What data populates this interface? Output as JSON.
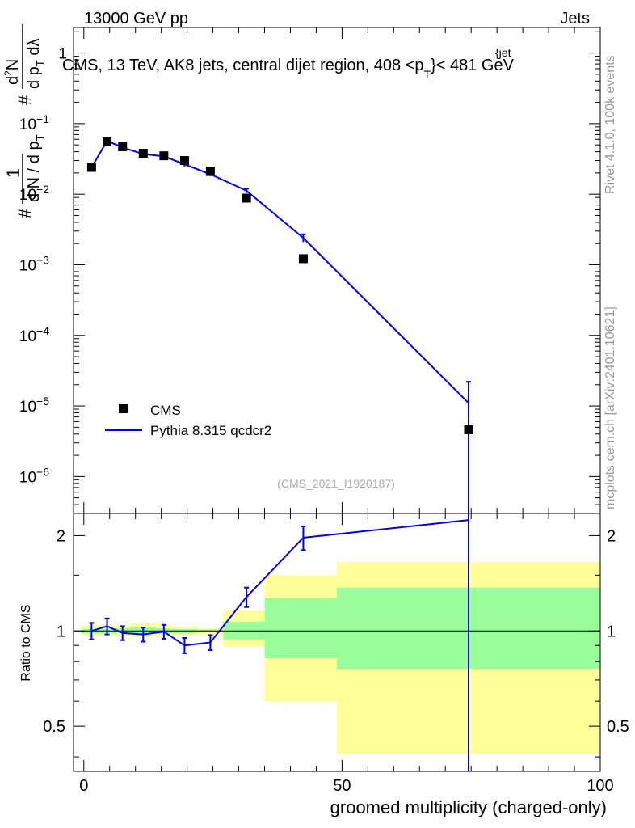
{
  "header": {
    "left": "13000 GeV pp",
    "right": "Jets"
  },
  "side_labels": {
    "upper": "Rivet 4.1.0,  100k events",
    "lower": "mcplots.cern.ch [arXiv:2401.10621]"
  },
  "watermark": "(CMS_2021_I1920187)",
  "colors": {
    "mc": "#0000ee",
    "band_inner": "#99ff99",
    "band_outer": "#ffff99",
    "data": "#000000"
  },
  "chart_data": [
    {
      "type": "scatter",
      "panel": "main",
      "title": "CMS, 13 TeV, AK8 jets, central dijet region, 408 <p",
      "title_sup": "{jet",
      "title_sub": "T",
      "title_tail": "}< 481 GeV",
      "ylabel": {
        "hash": "#",
        "one": "1",
        "dN": "d N / d p",
        "dN_sub": "T",
        "num": "d",
        "num_sup": "2",
        "num_tail": "N",
        "den": "d p",
        "den_sub": "T",
        "den_tail": " dλ",
        "hash2": "#"
      },
      "yscale": "log",
      "xlim": [
        -2,
        100
      ],
      "ylim": [
        3e-07,
        2.3
      ],
      "yticks": [
        {
          "base": "10",
          "exp": "−6",
          "value": 1e-06
        },
        {
          "base": "10",
          "exp": "−5",
          "value": 1e-05
        },
        {
          "base": "10",
          "exp": "−4",
          "value": 0.0001
        },
        {
          "base": "10",
          "exp": "−3",
          "value": 0.001
        },
        {
          "base": "10",
          "exp": "−2",
          "value": 0.01
        },
        {
          "base": "10",
          "exp": "−1",
          "value": 0.1
        },
        {
          "base": "1",
          "exp": "",
          "value": 1
        }
      ],
      "legend": {
        "position": "lower-left",
        "entries": [
          {
            "name": "CMS",
            "style": "marker"
          },
          {
            "name": "Pythia 8.315 qcdcr2",
            "style": "line"
          }
        ]
      },
      "series": [
        {
          "name": "CMS",
          "x": [
            1.5,
            4.5,
            7.5,
            11.5,
            15.5,
            19.5,
            24.5,
            31.5,
            42.5,
            74.5
          ],
          "y": [
            0.024,
            0.055,
            0.047,
            0.038,
            0.035,
            0.03,
            0.021,
            0.0088,
            0.00122,
            4.6e-06
          ]
        },
        {
          "name": "Pythia 8.315 qcdcr2",
          "x": [
            1.5,
            4.5,
            7.5,
            11.5,
            15.5,
            19.5,
            24.5,
            31.5,
            42.5,
            74.5
          ],
          "y": [
            0.024,
            0.057,
            0.046,
            0.037,
            0.0345,
            0.0265,
            0.0192,
            0.0112,
            0.0024,
            1.1e-05
          ],
          "yerr": [
            0.0016,
            0.0025,
            0.002,
            0.0018,
            0.0015,
            0.0018,
            0.0012,
            0.0008,
            0.0003,
            1.1e-05
          ]
        }
      ]
    },
    {
      "type": "line",
      "panel": "ratio",
      "ylabel": "Ratio to CMS",
      "xlabel": "groomed multiplicity (charged-only)",
      "xlim": [
        -2,
        100
      ],
      "ylim": [
        0.36,
        2.35
      ],
      "xticks": [
        {
          "label": "0",
          "value": 0
        },
        {
          "label": "50",
          "value": 50
        },
        {
          "label": "100",
          "value": 100
        }
      ],
      "yticks": [
        {
          "label": "0.5",
          "value": 0.5
        },
        {
          "label": "1",
          "value": 1
        },
        {
          "label": "2",
          "value": 2
        }
      ],
      "reference": 1,
      "bands": [
        {
          "x0": -0.5,
          "x1": 3,
          "inner": [
            0.985,
            1.015
          ],
          "outer": [
            0.97,
            1.04
          ]
        },
        {
          "x0": 3,
          "x1": 6,
          "inner": [
            0.985,
            1.015
          ],
          "outer": [
            0.97,
            1.04
          ]
        },
        {
          "x0": 6,
          "x1": 9,
          "inner": [
            0.985,
            1.02
          ],
          "outer": [
            0.965,
            1.04
          ]
        },
        {
          "x0": 9,
          "x1": 14,
          "inner": [
            0.98,
            1.025
          ],
          "outer": [
            0.96,
            1.06
          ]
        },
        {
          "x0": 14,
          "x1": 17,
          "inner": [
            0.98,
            1.02
          ],
          "outer": [
            0.96,
            1.05
          ]
        },
        {
          "x0": 17,
          "x1": 22,
          "inner": [
            0.985,
            1.015
          ],
          "outer": [
            0.97,
            1.03
          ]
        },
        {
          "x0": 22,
          "x1": 27,
          "inner": [
            0.99,
            1.01
          ],
          "outer": [
            0.975,
            1.02
          ]
        },
        {
          "x0": 27,
          "x1": 35,
          "inner": [
            0.94,
            1.07
          ],
          "outer": [
            0.89,
            1.16
          ]
        },
        {
          "x0": 35,
          "x1": 49,
          "inner": [
            0.82,
            1.27
          ],
          "outer": [
            0.6,
            1.5
          ]
        },
        {
          "x0": 49,
          "x1": 100,
          "inner": [
            0.76,
            1.37
          ],
          "outer": [
            0.41,
            1.65
          ]
        }
      ],
      "series": [
        {
          "name": "Pythia 8.315 qcdcr2 / CMS",
          "x": [
            1.5,
            4.5,
            7.5,
            11.5,
            15.5,
            19.5,
            24.5,
            31.5,
            42.5,
            74.5
          ],
          "y": [
            1.0,
            1.035,
            0.985,
            0.975,
            0.995,
            0.9,
            0.92,
            1.28,
            1.97,
            2.24
          ],
          "yerr": [
            0.06,
            0.06,
            0.05,
            0.05,
            0.05,
            0.05,
            0.05,
            0.09,
            0.17,
            2.24
          ]
        }
      ]
    }
  ]
}
